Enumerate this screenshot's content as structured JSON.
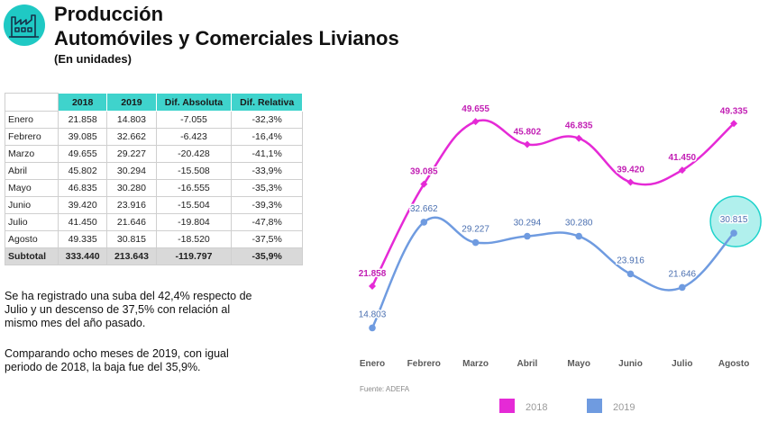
{
  "header": {
    "title_line1": "Producción",
    "title_line2": "Automóviles y Comerciales Livianos",
    "subtitle": "(En unidades)",
    "logo_icon": "factory-icon",
    "accent_color": "#1fc9c4"
  },
  "table": {
    "headers": [
      "",
      "2018",
      "2019",
      "Dif. Absoluta",
      "Dif. Relativa"
    ],
    "rows": [
      [
        "Enero",
        "21.858",
        "14.803",
        "-7.055",
        "-32,3%"
      ],
      [
        "Febrero",
        "39.085",
        "32.662",
        "-6.423",
        "-16,4%"
      ],
      [
        "Marzo",
        "49.655",
        "29.227",
        "-20.428",
        "-41,1%"
      ],
      [
        "Abril",
        "45.802",
        "30.294",
        "-15.508",
        "-33,9%"
      ],
      [
        "Mayo",
        "46.835",
        "30.280",
        "-16.555",
        "-35,3%"
      ],
      [
        "Junio",
        "39.420",
        "23.916",
        "-15.504",
        "-39,3%"
      ],
      [
        "Julio",
        "41.450",
        "21.646",
        "-19.804",
        "-47,8%"
      ],
      [
        "Agosto",
        "49.335",
        "30.815",
        "-18.520",
        "-37,5%"
      ]
    ],
    "subtotal": [
      "Subtotal",
      "333.440",
      "213.643",
      "-119.797",
      "-35,9%"
    ]
  },
  "text": {
    "paragraph1_line1": "Se ha registrado una suba del 42,4% respecto de",
    "paragraph1_line2": "Julio y un descenso de 37,5% con relación al",
    "paragraph1_line3": "mismo mes del año pasado.",
    "paragraph2_line1": "Comparando ocho meses de 2019, con igual",
    "paragraph2_line2": "periodo de 2018, la baja fue del 35,9%."
  },
  "chart_data": {
    "type": "line",
    "categories": [
      "Enero",
      "Febrero",
      "Marzo",
      "Abril",
      "Mayo",
      "Junio",
      "Julio",
      "Agosto"
    ],
    "series": [
      {
        "name": "2018",
        "color": "#e52ad6",
        "values": [
          21858,
          39085,
          49655,
          45802,
          46835,
          39420,
          41450,
          49335
        ],
        "labels": [
          "21.858",
          "39.085",
          "49.655",
          "45.802",
          "46.835",
          "39.420",
          "41.450",
          "49.335"
        ]
      },
      {
        "name": "2019",
        "color": "#6f9be0",
        "values": [
          14803,
          32662,
          29227,
          30294,
          30280,
          23916,
          21646,
          30815
        ],
        "labels": [
          "14.803",
          "32.662",
          "29.227",
          "30.294",
          "30.280",
          "23.916",
          "21.646",
          "30.815"
        ]
      }
    ],
    "highlight": {
      "series": "2019",
      "category": "Agosto",
      "color": "#1fd3cc"
    },
    "ylim": [
      10000,
      55000
    ],
    "source": "Fuente: ADEFA",
    "legend_position": "bottom"
  }
}
